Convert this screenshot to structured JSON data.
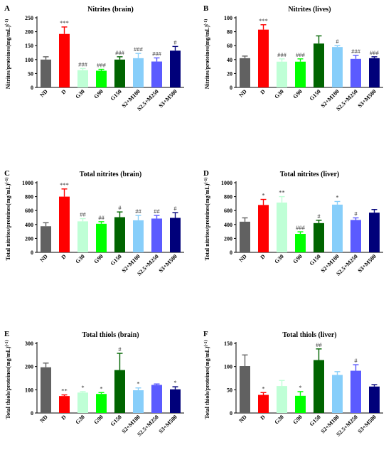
{
  "figure": {
    "panels": [
      {
        "letter": "A",
        "chart_data": {
          "type": "bar",
          "title": "Nitrites (brain)",
          "ylabel": "Nitrites/proteines(mg/mL)",
          "ylabel_exp": "(-1)",
          "ylim": [
            0,
            250
          ],
          "yticks": [
            0,
            50,
            100,
            150,
            200,
            250
          ],
          "categories": [
            "ND",
            "D",
            "G30",
            "G90",
            "G150",
            "S2+M100",
            "S2.5+M250",
            "S3+M500"
          ],
          "values": [
            100,
            192,
            62,
            60,
            100,
            105,
            93,
            132
          ],
          "errors": [
            10,
            25,
            6,
            5,
            10,
            17,
            13,
            15
          ],
          "annotations": [
            "",
            "***",
            "###",
            "###",
            "###",
            "###",
            "###",
            "#"
          ]
        }
      },
      {
        "letter": "B",
        "chart_data": {
          "type": "bar",
          "title": "Nitrites (lives)",
          "ylabel": "Nitrites/proteines(mg/mL)",
          "ylabel_exp": "(-1)",
          "ylim": [
            0,
            100
          ],
          "yticks": [
            0,
            20,
            40,
            60,
            80,
            100
          ],
          "categories": [
            "ND",
            "D",
            "G30",
            "G90",
            "G150",
            "S2+M100",
            "S2.5+M250",
            "S3+M500"
          ],
          "values": [
            42,
            83,
            37,
            37,
            63,
            58,
            41,
            42
          ],
          "errors": [
            3,
            7,
            4,
            4,
            11,
            2,
            5,
            2
          ],
          "annotations": [
            "",
            "***",
            "###",
            "###",
            "",
            "#",
            "###",
            "###"
          ]
        }
      },
      {
        "letter": "C",
        "chart_data": {
          "type": "bar",
          "title": "Total nitrites (brain)",
          "ylabel": "Total nitrites/proteines(mg/mL)",
          "ylabel_exp": "(-1)",
          "ylim": [
            0,
            1000
          ],
          "yticks": [
            0,
            200,
            400,
            600,
            800,
            1000
          ],
          "categories": [
            "ND",
            "D",
            "G30",
            "G90",
            "G150",
            "S2+M100",
            "S2.5+M250",
            "S3+M500"
          ],
          "values": [
            375,
            800,
            445,
            410,
            505,
            460,
            485,
            495
          ],
          "errors": [
            50,
            110,
            40,
            30,
            75,
            70,
            45,
            75
          ],
          "annotations": [
            "",
            "***",
            "##",
            "##",
            "#",
            "##",
            "##",
            "#"
          ]
        }
      },
      {
        "letter": "D",
        "chart_data": {
          "type": "bar",
          "title": "Total nitrites (liver)",
          "ylabel": "Total nitrites/proteines(mg/mL)",
          "ylabel_exp": "(-1)",
          "ylim": [
            0,
            1000
          ],
          "yticks": [
            0,
            200,
            400,
            600,
            800,
            1000
          ],
          "categories": [
            "ND",
            "D",
            "G30",
            "G90",
            "G150",
            "S2+M100",
            "S2.5+M250",
            "S3+M500"
          ],
          "values": [
            440,
            680,
            715,
            265,
            420,
            685,
            465,
            570
          ],
          "errors": [
            55,
            80,
            85,
            30,
            40,
            45,
            30,
            45
          ],
          "annotations": [
            "",
            "*",
            "**",
            "###",
            "#",
            "*",
            "#",
            ""
          ]
        }
      },
      {
        "letter": "E",
        "chart_data": {
          "type": "bar",
          "title": "Total thiols (brain)",
          "ylabel": "Total thiols/proteines(mg/mL)",
          "ylabel_exp": "(-1)",
          "ylim": [
            0,
            300
          ],
          "yticks": [
            0,
            100,
            200,
            300
          ],
          "categories": [
            "ND",
            "D",
            "G30",
            "G90",
            "G150",
            "S2+M100",
            "S2.5+M250",
            "S3+M500"
          ],
          "values": [
            197,
            73,
            88,
            82,
            185,
            98,
            121,
            102
          ],
          "errors": [
            18,
            5,
            4,
            6,
            72,
            10,
            4,
            11
          ],
          "annotations": [
            "",
            "**",
            "*",
            "*",
            "#",
            "*",
            "",
            "*"
          ]
        }
      },
      {
        "letter": "F",
        "chart_data": {
          "type": "bar",
          "title": "Total thiols (liver)",
          "ylabel": "Total thiols/proteines(mg/mL)",
          "ylabel_exp": "(-1)",
          "ylim": [
            0,
            150
          ],
          "yticks": [
            0,
            50,
            100,
            150
          ],
          "categories": [
            "ND",
            "D",
            "G30",
            "G90",
            "G150",
            "S2+M100",
            "S2.5+M250",
            "S3+M500"
          ],
          "values": [
            101,
            39,
            58,
            37,
            114,
            82,
            91,
            57
          ],
          "errors": [
            24,
            5,
            12,
            9,
            24,
            7,
            13,
            4
          ],
          "annotations": [
            "",
            "*",
            "",
            "*",
            "##",
            "",
            "#",
            ""
          ]
        }
      }
    ],
    "colors": [
      "#616161",
      "#ff0000",
      "#bfffd6",
      "#00ff00",
      "#006400",
      "#87cefa",
      "#5b5bff",
      "#00007a"
    ]
  }
}
